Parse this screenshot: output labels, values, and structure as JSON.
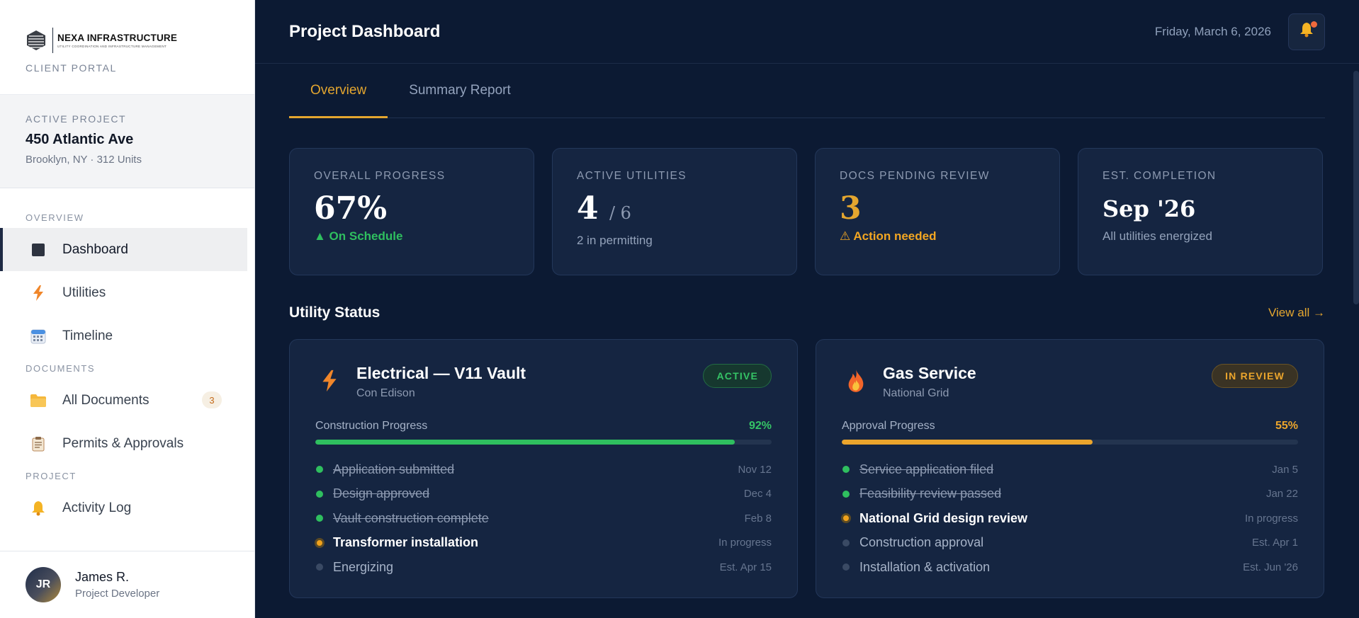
{
  "brand": {
    "name": "NEXA INFRASTRUCTURE",
    "tagline": "UTILITY COORDINATION AND INFRASTRUCTURE MANAGEMENT",
    "portal_label": "CLIENT PORTAL"
  },
  "active_project": {
    "label": "ACTIVE PROJECT",
    "name": "450 Atlantic Ave",
    "sub": "Brooklyn, NY · 312 Units"
  },
  "nav": {
    "section_overview": "OVERVIEW",
    "section_documents": "DOCUMENTS",
    "section_project": "PROJECT",
    "items": [
      {
        "label": "Dashboard",
        "icon": "dashboard-icon"
      },
      {
        "label": "Utilities",
        "icon": "lightning-icon"
      },
      {
        "label": "Timeline",
        "icon": "calendar-icon"
      },
      {
        "label": "All Documents",
        "icon": "folder-icon",
        "badge": "3"
      },
      {
        "label": "Permits & Approvals",
        "icon": "clipboard-icon"
      },
      {
        "label": "Activity Log",
        "icon": "bell-icon"
      }
    ]
  },
  "user": {
    "initials": "JR",
    "name": "James R.",
    "role": "Project Developer"
  },
  "header": {
    "title": "Project Dashboard",
    "date": "Friday, March 6, 2026"
  },
  "tabs": [
    "Overview",
    "Summary Report"
  ],
  "stats": [
    {
      "label": "OVERALL PROGRESS",
      "value": "67%",
      "note": "▲ On Schedule"
    },
    {
      "label": "ACTIVE UTILITIES",
      "value": "4",
      "denom": "/ 6",
      "note": "2 in permitting"
    },
    {
      "label": "DOCS PENDING REVIEW",
      "value": "3",
      "note": "⚠ Action needed"
    },
    {
      "label": "EST. COMPLETION",
      "value": "Sep '26",
      "note": "All utilities energized"
    }
  ],
  "utility_section": {
    "title": "Utility Status",
    "view_all": "View all →"
  },
  "utilities": [
    {
      "name": "Electrical — V11 Vault",
      "provider": "Con Edison",
      "status": "ACTIVE",
      "progress_label": "Construction Progress",
      "progress_pct": "92%",
      "progress_value": 0.92,
      "steps": [
        {
          "label": "Application submitted",
          "date": "Nov 12",
          "state": "done"
        },
        {
          "label": "Design approved",
          "date": "Dec 4",
          "state": "done"
        },
        {
          "label": "Vault construction complete",
          "date": "Feb 8",
          "state": "done"
        },
        {
          "label": "Transformer installation",
          "date": "In progress",
          "state": "current"
        },
        {
          "label": "Energizing",
          "date": "Est. Apr 15",
          "state": "pending"
        }
      ]
    },
    {
      "name": "Gas Service",
      "provider": "National Grid",
      "status": "IN REVIEW",
      "progress_label": "Approval Progress",
      "progress_pct": "55%",
      "progress_value": 0.55,
      "steps": [
        {
          "label": "Service application filed",
          "date": "Jan 5",
          "state": "done"
        },
        {
          "label": "Feasibility review passed",
          "date": "Jan 22",
          "state": "done"
        },
        {
          "label": "National Grid design review",
          "date": "In progress",
          "state": "current"
        },
        {
          "label": "Construction approval",
          "date": "Est. Apr 1",
          "state": "pending"
        },
        {
          "label": "Installation & activation",
          "date": "Est. Jun '26",
          "state": "pending"
        }
      ]
    }
  ],
  "colors": {
    "accent": "#e4a62f",
    "success": "#2fbf5f",
    "background": "#0c1a33",
    "card": "#152541"
  }
}
